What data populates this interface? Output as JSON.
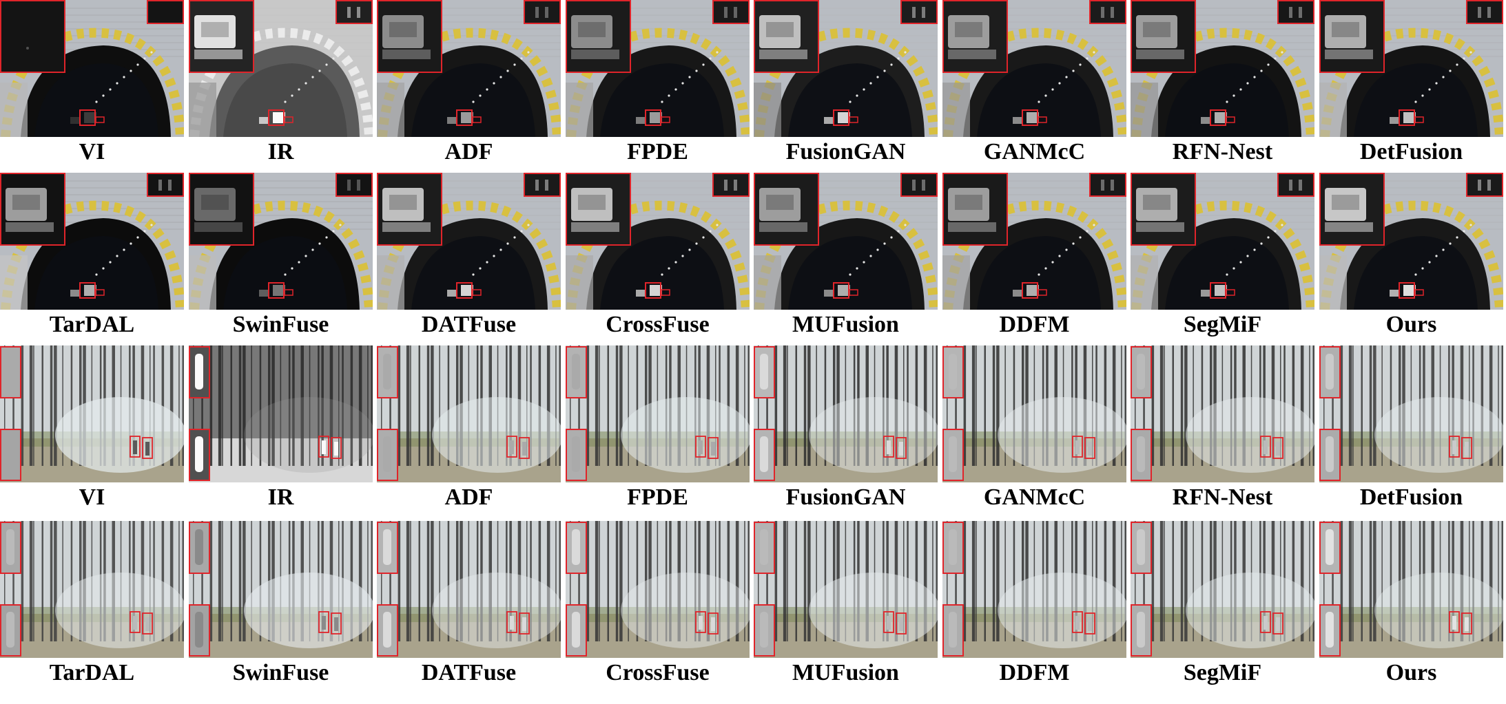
{
  "figure": {
    "colors": {
      "zoom_box": "#e0242a",
      "tunnel_wall": "#b8bcc2",
      "tunnel_dark": "#0c0e14",
      "stripe_yellow": "#d8c040",
      "forest_sky": "#cfd4d6",
      "forest_ground": "#a9a38c",
      "trunk": "#3a3630",
      "smoke": "#e6ecee"
    },
    "rows": [
      {
        "scene": "tunnel",
        "methods": [
          "VI",
          "IR",
          "ADF",
          "FPDE",
          "FusionGAN",
          "GANMcC",
          "RFN-Nest",
          "DetFusion"
        ]
      },
      {
        "scene": "tunnel",
        "methods": [
          "TarDAL",
          "SwinFuse",
          "DATFuse",
          "CrossFuse",
          "MUFusion",
          "DDFM",
          "SegMiF",
          "Ours"
        ]
      },
      {
        "scene": "forest",
        "methods": [
          "VI",
          "IR",
          "ADF",
          "FPDE",
          "FusionGAN",
          "GANMcC",
          "RFN-Nest",
          "DetFusion"
        ]
      },
      {
        "scene": "forest",
        "methods": [
          "TarDAL",
          "SwinFuse",
          "DATFuse",
          "CrossFuse",
          "MUFusion",
          "DDFM",
          "SegMiF",
          "Ours"
        ]
      }
    ]
  }
}
